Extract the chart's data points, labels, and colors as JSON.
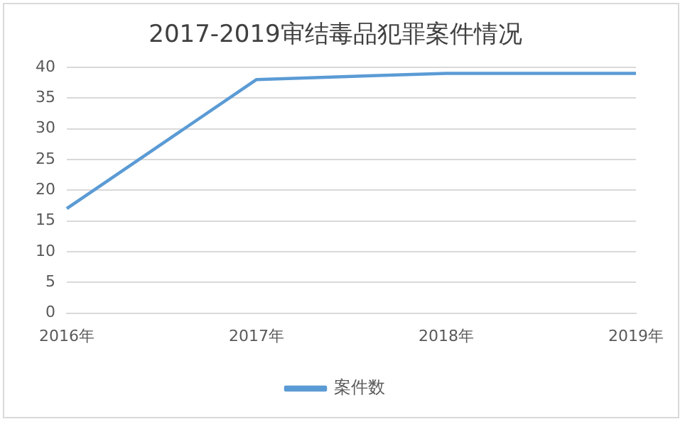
{
  "chart_data": {
    "type": "line",
    "title": "2017-2019审结毒品犯罪案件情况",
    "categories": [
      "2016年",
      "2017年",
      "2018年",
      "2019年"
    ],
    "series": [
      {
        "name": "案件数",
        "color": "#5b9bd5",
        "values": [
          17,
          38,
          39,
          39
        ]
      }
    ],
    "ylim": [
      0,
      40
    ],
    "yticks": [
      0,
      5,
      10,
      15,
      20,
      25,
      30,
      35,
      40
    ],
    "grid": "y",
    "legend": "bottom",
    "marker": "none"
  }
}
